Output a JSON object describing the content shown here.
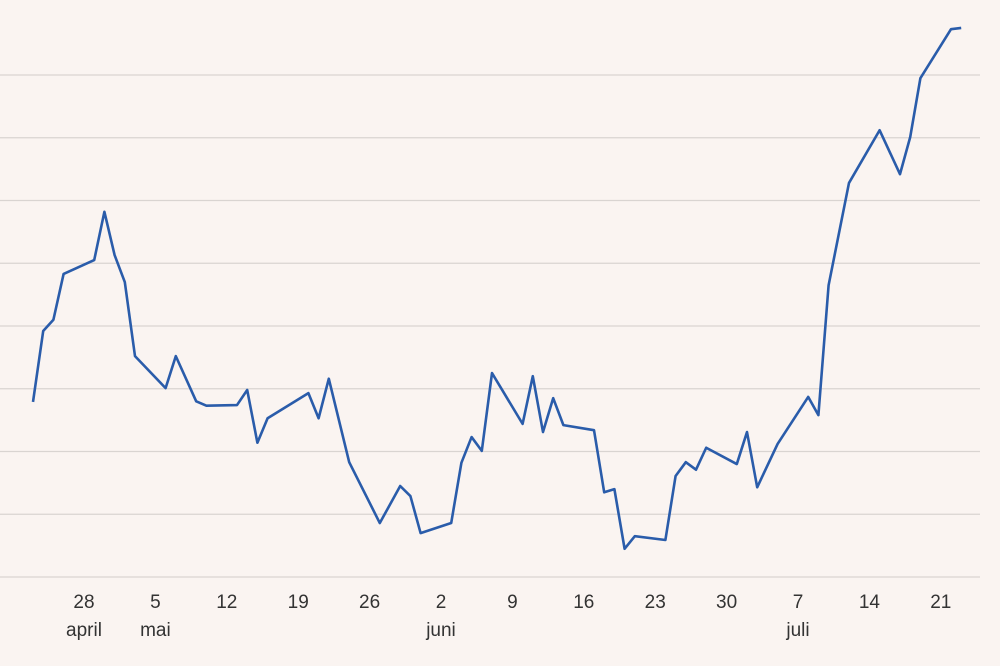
{
  "chart_data": {
    "type": "line",
    "x": [
      -5,
      -4,
      -3,
      -2,
      1,
      2,
      3,
      4,
      5,
      8,
      9,
      11,
      12,
      15,
      16,
      17,
      18,
      22,
      23,
      24,
      26,
      29,
      31,
      32,
      33,
      36,
      37,
      38,
      39,
      40,
      43,
      44,
      45,
      46,
      47,
      50,
      51,
      52,
      53,
      54,
      57,
      58,
      59,
      60,
      61,
      64,
      65,
      66,
      68,
      71,
      72,
      73,
      75,
      78,
      80,
      81,
      82,
      85,
      86
    ],
    "series": [
      {
        "color": "#2a5caa",
        "values": [
          2.79,
          3.92,
          4.1,
          4.83,
          5.05,
          5.82,
          5.13,
          4.7,
          3.52,
          3.01,
          3.52,
          2.8,
          2.73,
          2.74,
          2.98,
          2.14,
          2.53,
          2.93,
          2.53,
          3.16,
          1.83,
          0.86,
          1.45,
          1.29,
          0.7,
          0.86,
          1.82,
          2.23,
          2.01,
          3.25,
          2.44,
          3.2,
          2.31,
          2.85,
          2.42,
          2.34,
          1.35,
          1.4,
          0.45,
          0.65,
          0.59,
          1.61,
          1.83,
          1.71,
          2.06,
          1.8,
          2.31,
          1.43,
          2.12,
          2.87,
          2.58,
          4.65,
          6.28,
          7.12,
          6.42,
          7.01,
          7.95,
          8.73,
          8.75
        ]
      }
    ],
    "xlim": [
      -8,
      88
    ],
    "xticks": [
      {
        "value": 0,
        "label": "28"
      },
      {
        "value": 7,
        "label": "5"
      },
      {
        "value": 14,
        "label": "12"
      },
      {
        "value": 21,
        "label": "19"
      },
      {
        "value": 28,
        "label": "26"
      },
      {
        "value": 35,
        "label": "2"
      },
      {
        "value": 42,
        "label": "9"
      },
      {
        "value": 49,
        "label": "16"
      },
      {
        "value": 56,
        "label": "23"
      },
      {
        "value": 63,
        "label": "30"
      },
      {
        "value": 70,
        "label": "7"
      },
      {
        "value": 77,
        "label": "14"
      },
      {
        "value": 84,
        "label": "21"
      }
    ],
    "month_ticks": [
      {
        "value": 0,
        "label": "april"
      },
      {
        "value": 7,
        "label": "mai"
      },
      {
        "value": 35,
        "label": "juni"
      },
      {
        "value": 70,
        "label": "juli"
      }
    ],
    "ylim": [
      0,
      9
    ],
    "yticks": [
      0,
      1,
      2,
      3,
      4,
      5,
      6,
      7,
      8
    ],
    "grid": true
  }
}
